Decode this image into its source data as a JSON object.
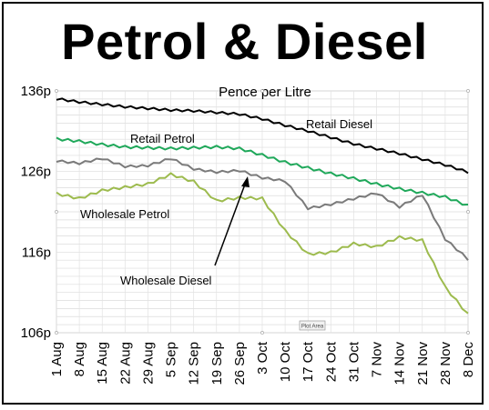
{
  "headline": "Petrol & Diesel",
  "chart_data": {
    "type": "line",
    "title": "Pence per Litre",
    "xlabel": "",
    "ylabel": "",
    "x_ticks": [
      "1 Aug",
      "8 Aug",
      "15 Aug",
      "22 Aug",
      "29 Aug",
      "5 Sep",
      "12 Sep",
      "19 Sep",
      "26 Sep",
      "3 Oct",
      "10 Oct",
      "17 Oct",
      "24 Oct",
      "31 Oct",
      "7 Nov",
      "14 Nov",
      "21 Nov",
      "28 Nov",
      "8 Dec"
    ],
    "y_ticks": [
      "106p",
      "116p",
      "126p",
      "136p"
    ],
    "ylim": [
      106,
      136
    ],
    "grid": true,
    "plot_area_tag": "Plot Area",
    "series": [
      {
        "name": "Retail Diesel",
        "color": "#000000",
        "values": [
          134.9,
          134.5,
          134.2,
          133.9,
          133.7,
          133.5,
          133.4,
          133.2,
          133.0,
          132.4,
          131.6,
          130.9,
          130.1,
          129.3,
          128.7,
          128.1,
          127.4,
          126.7,
          125.8
        ]
      },
      {
        "name": "Retail Petrol",
        "color": "#1fa85a",
        "values": [
          130.2,
          129.9,
          129.5,
          129.2,
          129.1,
          129.0,
          129.1,
          129.2,
          129.0,
          128.2,
          127.3,
          126.6,
          125.9,
          125.3,
          124.6,
          124.0,
          123.5,
          123.0,
          121.9
        ]
      },
      {
        "name": "Wholesale Diesel",
        "color": "#7a7a7a",
        "values": [
          127.2,
          126.9,
          127.5,
          126.5,
          126.6,
          127.5,
          126.2,
          125.8,
          126.0,
          125.1,
          124.7,
          121.3,
          121.8,
          122.5,
          123.2,
          121.5,
          123.0,
          117.5,
          115.0
        ]
      },
      {
        "name": "Wholesale Petrol",
        "color": "#9dbb4e",
        "values": [
          123.4,
          122.8,
          123.8,
          124.2,
          124.6,
          125.8,
          124.9,
          122.5,
          122.9,
          122.8,
          118.8,
          115.9,
          116.1,
          117.2,
          116.8,
          118.0,
          117.6,
          111.8,
          108.4
        ]
      }
    ],
    "annotations": [
      {
        "text": "Retail Diesel",
        "series": "Retail Diesel"
      },
      {
        "text": "Retail Petrol",
        "series": "Retail Petrol"
      },
      {
        "text": "Wholesale Petrol",
        "series": "Wholesale Petrol"
      },
      {
        "text": "Wholesale Diesel",
        "series": "Wholesale Diesel"
      }
    ]
  }
}
